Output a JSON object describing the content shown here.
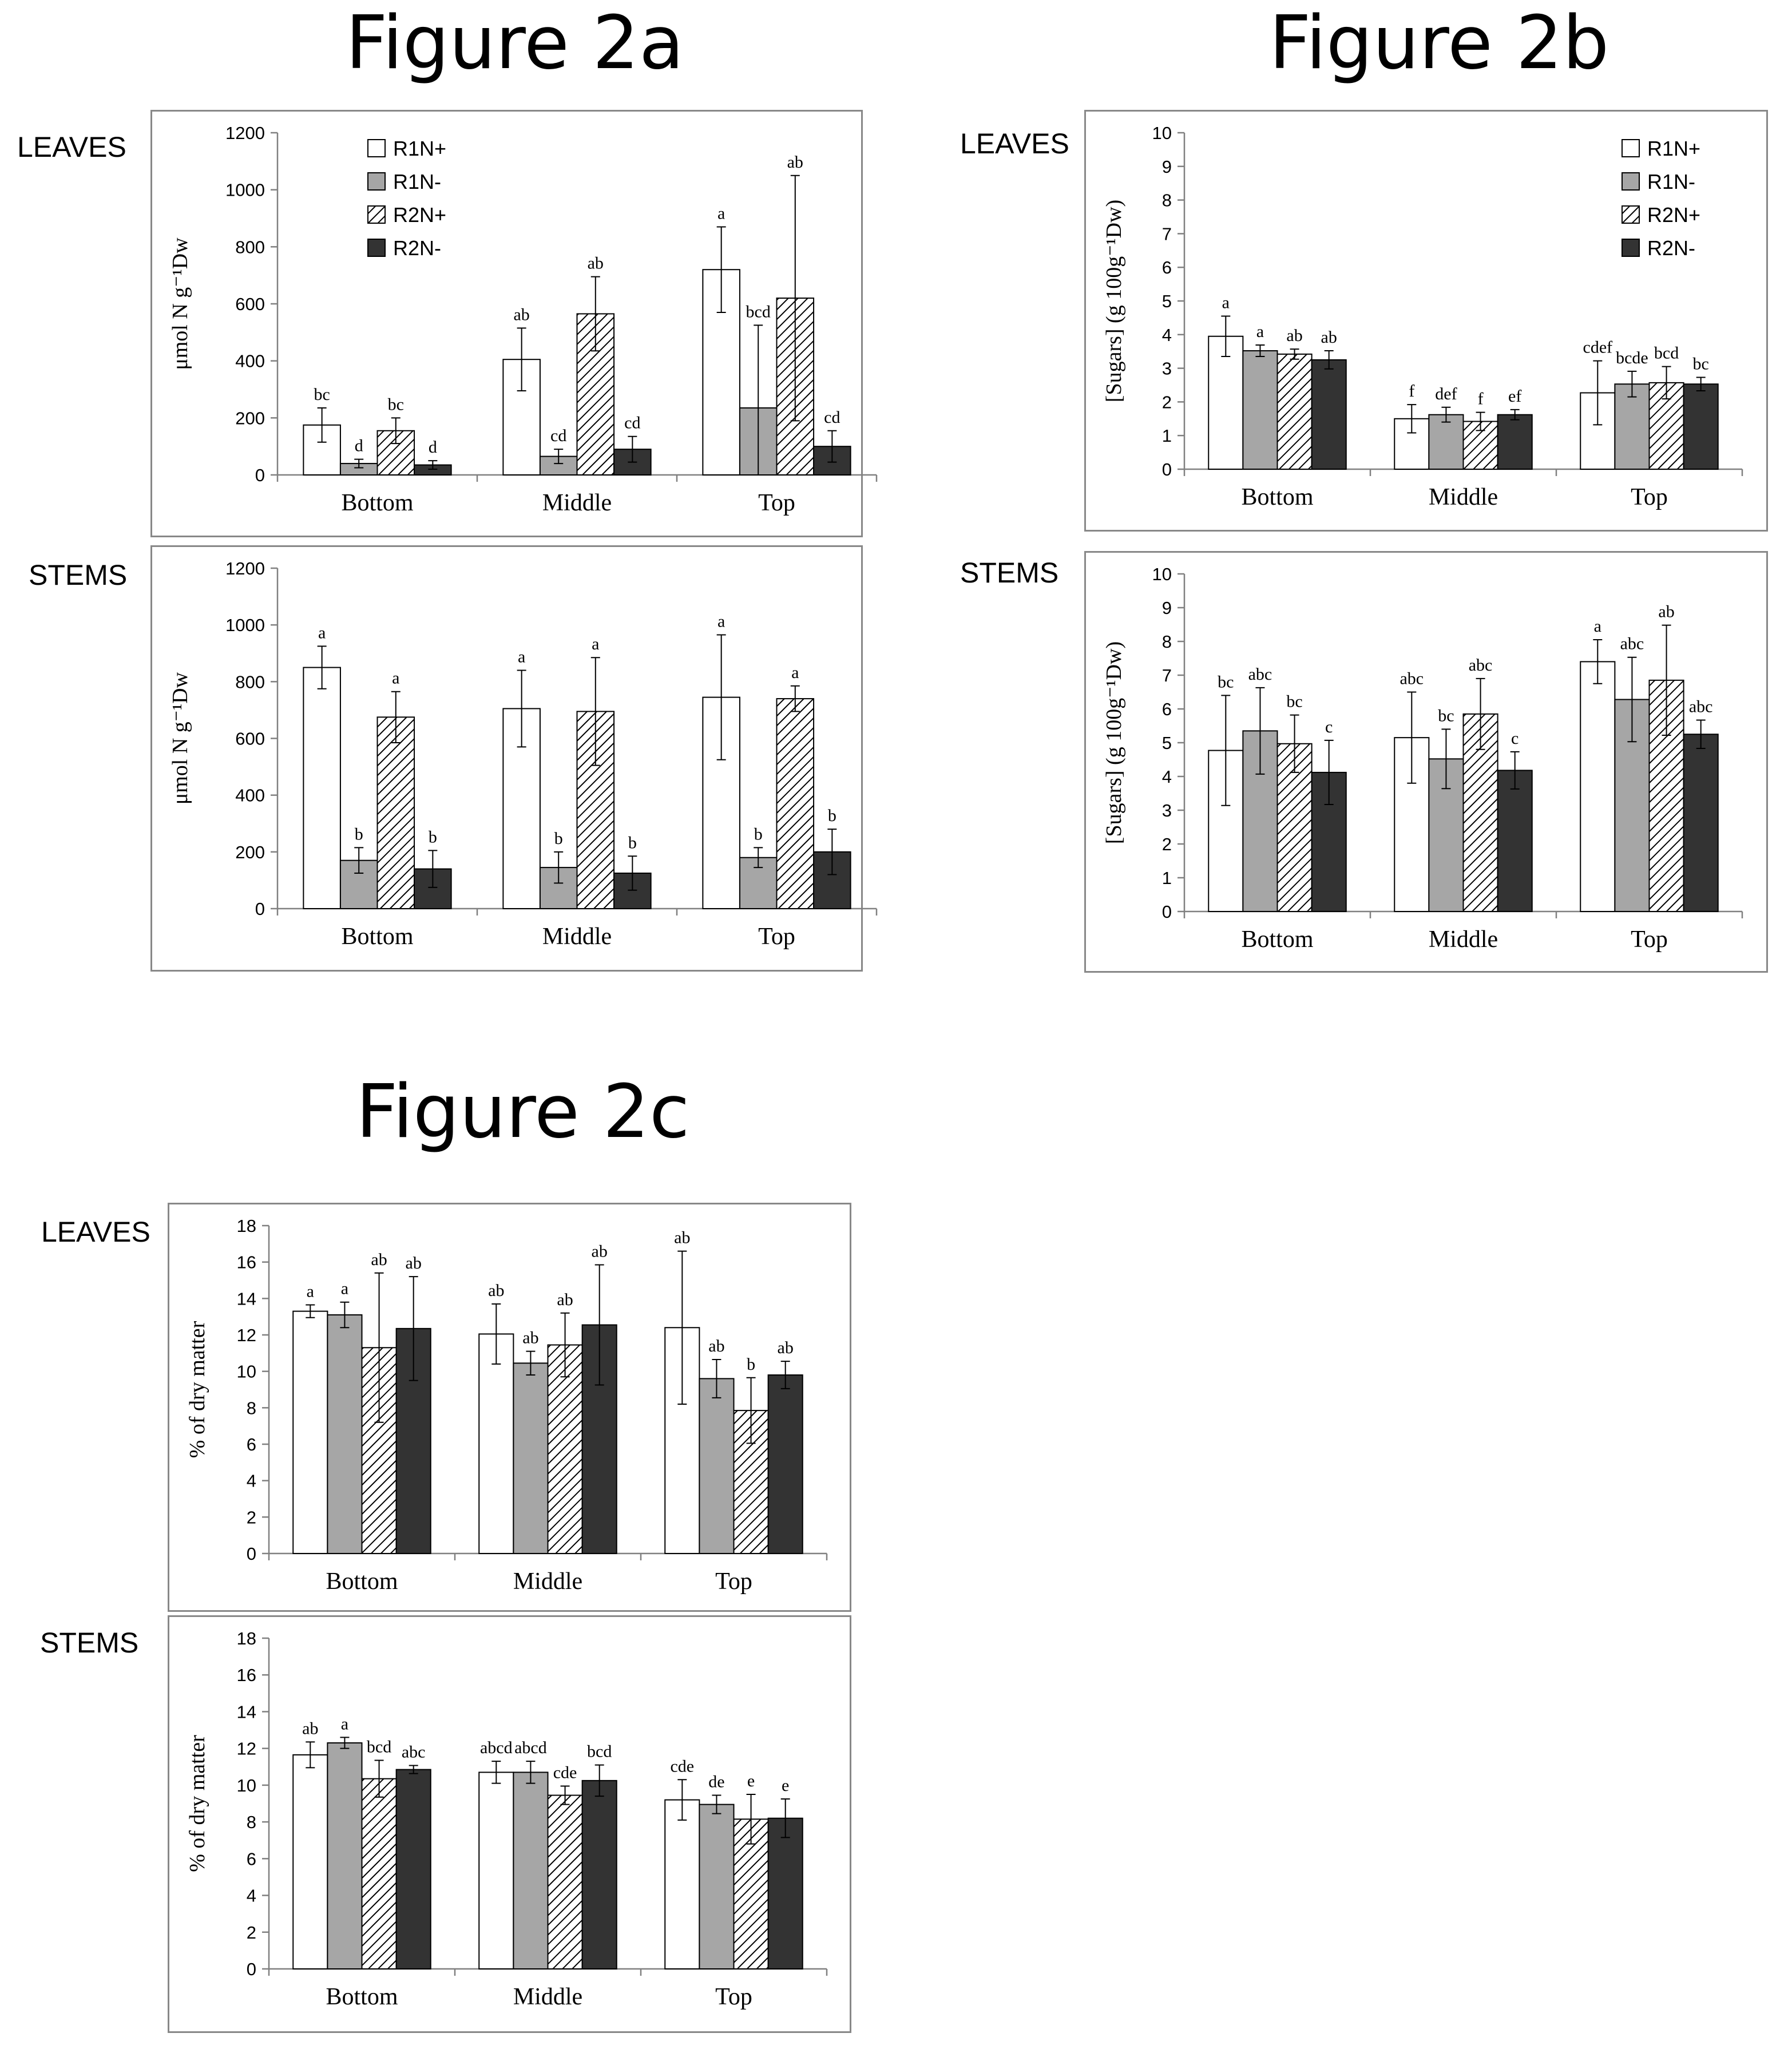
{
  "titles": {
    "fig2a": "Figure 2a",
    "fig2b": "Figure 2b",
    "fig2c": "Figure 2c"
  },
  "row_labels": {
    "leaves": "LEAVES",
    "stems": "STEMS"
  },
  "colors": {
    "R1N+": "#ffffff",
    "R1N-": "#a6a6a6",
    "R2N+": "hatch",
    "R2N-": "#333333",
    "frame": "#888888"
  },
  "chart_data": [
    {
      "id": "fig2a-leaves",
      "figure": "Figure 2a",
      "row": "LEAVES",
      "type": "bar",
      "ylabel": "μmol N g⁻¹Dw",
      "ylim": [
        0,
        1200
      ],
      "yticks": [
        0,
        200,
        400,
        600,
        800,
        1000,
        1200
      ],
      "categories": [
        "Bottom",
        "Middle",
        "Top"
      ],
      "legend": true,
      "legend_position": "top-center",
      "series": [
        {
          "name": "R1N+",
          "values": [
            175,
            405,
            720
          ],
          "errors": [
            60,
            110,
            150
          ],
          "labels": [
            "bc",
            "ab",
            "a"
          ]
        },
        {
          "name": "R1N-",
          "values": [
            40,
            65,
            235
          ],
          "errors": [
            15,
            25,
            290
          ],
          "labels": [
            "d",
            "cd",
            "bcd"
          ]
        },
        {
          "name": "R2N+",
          "values": [
            155,
            565,
            620
          ],
          "errors": [
            45,
            130,
            430
          ],
          "labels": [
            "bc",
            "ab",
            "ab"
          ]
        },
        {
          "name": "R2N-",
          "values": [
            35,
            90,
            100
          ],
          "errors": [
            15,
            45,
            55
          ],
          "labels": [
            "d",
            "cd",
            "cd"
          ]
        }
      ]
    },
    {
      "id": "fig2a-stems",
      "figure": "Figure 2a",
      "row": "STEMS",
      "type": "bar",
      "ylabel": "μmol N g⁻¹Dw",
      "ylim": [
        0,
        1200
      ],
      "yticks": [
        0,
        200,
        400,
        600,
        800,
        1000,
        1200
      ],
      "categories": [
        "Bottom",
        "Middle",
        "Top"
      ],
      "legend": false,
      "series": [
        {
          "name": "R1N+",
          "values": [
            850,
            705,
            745
          ],
          "errors": [
            75,
            135,
            220
          ],
          "labels": [
            "a",
            "a",
            "a"
          ]
        },
        {
          "name": "R1N-",
          "values": [
            170,
            145,
            180
          ],
          "errors": [
            45,
            55,
            35
          ],
          "labels": [
            "b",
            "b",
            "b"
          ]
        },
        {
          "name": "R2N+",
          "values": [
            675,
            695,
            740
          ],
          "errors": [
            90,
            190,
            45
          ],
          "labels": [
            "a",
            "a",
            "a"
          ]
        },
        {
          "name": "R2N-",
          "values": [
            140,
            125,
            200
          ],
          "errors": [
            65,
            60,
            80
          ],
          "labels": [
            "b",
            "b",
            "b"
          ]
        }
      ]
    },
    {
      "id": "fig2b-leaves",
      "figure": "Figure 2b",
      "row": "LEAVES",
      "type": "bar",
      "ylabel": "[Sugars] (g 100g⁻¹Dw)",
      "ylim": [
        0,
        10
      ],
      "yticks": [
        0,
        1,
        2,
        3,
        4,
        5,
        6,
        7,
        8,
        9,
        10
      ],
      "categories": [
        "Bottom",
        "Middle",
        "Top"
      ],
      "legend": true,
      "legend_position": "top-right",
      "series": [
        {
          "name": "R1N+",
          "values": [
            3.95,
            1.5,
            2.27
          ],
          "errors": [
            0.6,
            0.42,
            0.95
          ],
          "labels": [
            "a",
            "f",
            "cdef"
          ]
        },
        {
          "name": "R1N-",
          "values": [
            3.52,
            1.62,
            2.53
          ],
          "errors": [
            0.17,
            0.22,
            0.38
          ],
          "labels": [
            "a",
            "def",
            "bcde"
          ]
        },
        {
          "name": "R2N+",
          "values": [
            3.42,
            1.42,
            2.57
          ],
          "errors": [
            0.15,
            0.27,
            0.48
          ],
          "labels": [
            "ab",
            "f",
            "bcd"
          ]
        },
        {
          "name": "R2N-",
          "values": [
            3.25,
            1.62,
            2.53
          ],
          "errors": [
            0.27,
            0.15,
            0.2
          ],
          "labels": [
            "ab",
            "ef",
            "bc"
          ]
        }
      ]
    },
    {
      "id": "fig2b-stems",
      "figure": "Figure 2b",
      "row": "STEMS",
      "type": "bar",
      "ylabel": "[Sugars] (g 100g⁻¹Dw)",
      "ylim": [
        0,
        10
      ],
      "yticks": [
        0,
        1,
        2,
        3,
        4,
        5,
        6,
        7,
        8,
        9,
        10
      ],
      "categories": [
        "Bottom",
        "Middle",
        "Top"
      ],
      "legend": false,
      "series": [
        {
          "name": "R1N+",
          "values": [
            4.77,
            5.15,
            7.4
          ],
          "errors": [
            1.63,
            1.35,
            0.65
          ],
          "labels": [
            "bc",
            "abc",
            "a"
          ]
        },
        {
          "name": "R1N-",
          "values": [
            5.35,
            4.52,
            6.28
          ],
          "errors": [
            1.28,
            0.88,
            1.25
          ],
          "labels": [
            "abc",
            "bc",
            "abc"
          ]
        },
        {
          "name": "R2N+",
          "values": [
            4.97,
            5.85,
            6.85
          ],
          "errors": [
            0.85,
            1.05,
            1.63
          ],
          "labels": [
            "bc",
            "abc",
            "ab"
          ]
        },
        {
          "name": "R2N-",
          "values": [
            4.12,
            4.18,
            5.25
          ],
          "errors": [
            0.95,
            0.55,
            0.42
          ],
          "labels": [
            "c",
            "c",
            "abc"
          ]
        }
      ]
    },
    {
      "id": "fig2c-leaves",
      "figure": "Figure 2c",
      "row": "LEAVES",
      "type": "bar",
      "ylabel": "% of dry matter",
      "ylim": [
        0,
        18
      ],
      "yticks": [
        0,
        2,
        4,
        6,
        8,
        10,
        12,
        14,
        16,
        18
      ],
      "categories": [
        "Bottom",
        "Middle",
        "Top"
      ],
      "legend": false,
      "series": [
        {
          "name": "R1N+",
          "values": [
            13.3,
            12.05,
            12.4
          ],
          "errors": [
            0.35,
            1.65,
            4.2
          ],
          "labels": [
            "a",
            "ab",
            "ab"
          ]
        },
        {
          "name": "R1N-",
          "values": [
            13.1,
            10.45,
            9.6
          ],
          "errors": [
            0.7,
            0.65,
            1.05
          ],
          "labels": [
            "a",
            "ab",
            "ab"
          ]
        },
        {
          "name": "R2N+",
          "values": [
            11.3,
            11.45,
            7.85
          ],
          "errors": [
            4.1,
            1.75,
            1.8
          ],
          "labels": [
            "ab",
            "ab",
            "b"
          ]
        },
        {
          "name": "R2N-",
          "values": [
            12.35,
            12.55,
            9.8
          ],
          "errors": [
            2.85,
            3.3,
            0.75
          ],
          "labels": [
            "ab",
            "ab",
            "ab"
          ]
        }
      ]
    },
    {
      "id": "fig2c-stems",
      "figure": "Figure 2c",
      "row": "STEMS",
      "type": "bar",
      "ylabel": "% of dry matter",
      "ylim": [
        0,
        18
      ],
      "yticks": [
        0,
        2,
        4,
        6,
        8,
        10,
        12,
        14,
        16,
        18
      ],
      "categories": [
        "Bottom",
        "Middle",
        "Top"
      ],
      "legend": false,
      "series": [
        {
          "name": "R1N+",
          "values": [
            11.65,
            10.7,
            9.2
          ],
          "errors": [
            0.7,
            0.6,
            1.1
          ],
          "labels": [
            "ab",
            "abcd",
            "cde"
          ]
        },
        {
          "name": "R1N-",
          "values": [
            12.3,
            10.7,
            8.95
          ],
          "errors": [
            0.3,
            0.6,
            0.5
          ],
          "labels": [
            "a",
            "abcd",
            "de"
          ]
        },
        {
          "name": "R2N+",
          "values": [
            10.35,
            9.45,
            8.15
          ],
          "errors": [
            1.0,
            0.5,
            1.35
          ],
          "labels": [
            "bcd",
            "cde",
            "e"
          ]
        },
        {
          "name": "R2N-",
          "values": [
            10.85,
            10.25,
            8.2
          ],
          "errors": [
            0.22,
            0.85,
            1.05
          ],
          "labels": [
            "abc",
            "bcd",
            "e"
          ]
        }
      ]
    }
  ]
}
